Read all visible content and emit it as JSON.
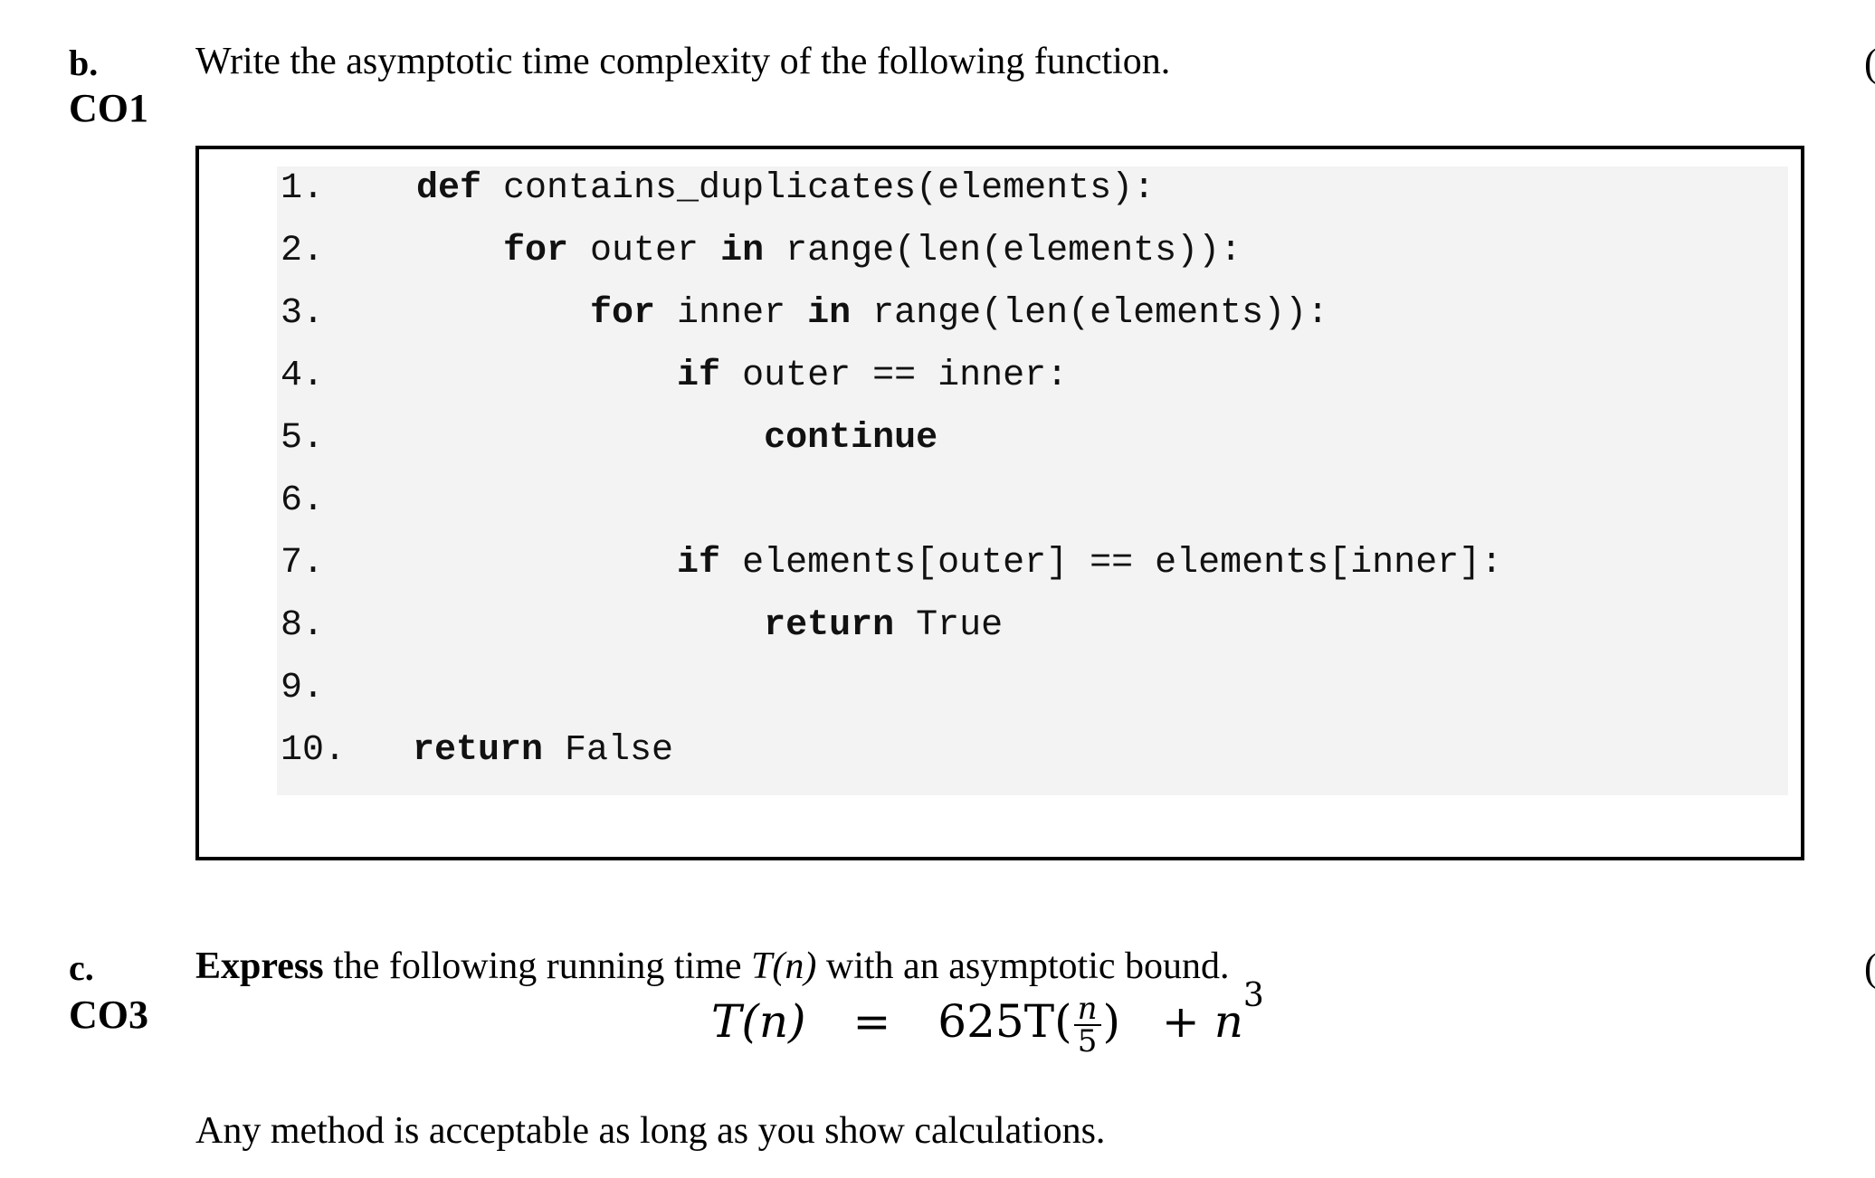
{
  "question_b": {
    "letter": "b.",
    "co": "CO1",
    "prompt": "Write the asymptotic time complexity of the following function.",
    "margin_mark": "("
  },
  "code": {
    "lines": [
      {
        "num": "1.",
        "indent": "",
        "kw1": "def",
        "rest": " contains_duplicates(elements):"
      },
      {
        "num": "2.",
        "indent": "    ",
        "kw1": "for",
        "mid": " outer ",
        "kw2": "in",
        "rest": " range(len(elements)):"
      },
      {
        "num": "3.",
        "indent": "        ",
        "kw1": "for",
        "mid": " inner ",
        "kw2": "in",
        "rest": " range(len(elements)):"
      },
      {
        "num": "4.",
        "indent": "            ",
        "kw1": "if",
        "rest": " outer == inner:"
      },
      {
        "num": "5.",
        "indent": "                ",
        "kw1": "continue",
        "rest": ""
      },
      {
        "num": "6.",
        "indent": "",
        "kw1": "",
        "rest": ""
      },
      {
        "num": "7.",
        "indent": "            ",
        "kw1": "if",
        "rest": " elements[outer] == elements[inner]:"
      },
      {
        "num": "8.",
        "indent": "                ",
        "kw1": "return",
        "rest": " True"
      },
      {
        "num": "9.",
        "indent": "",
        "kw1": "",
        "rest": ""
      },
      {
        "num": "10.",
        "indent": "",
        "kw1": "return",
        "rest": " False"
      }
    ]
  },
  "question_c": {
    "letter": "c.",
    "co": "CO3",
    "prompt_bold": "Express",
    "prompt_rest_1": " the following running time ",
    "prompt_math": "T(n)",
    "prompt_rest_2": " with an asymptotic bound.",
    "margin_mark": "(",
    "equation": {
      "lhs": "T(n)",
      "equals": "=",
      "coef": "625T(",
      "frac_num": "n",
      "frac_den": "5",
      "close": ")",
      "plus": "+ n",
      "exponent": "3"
    },
    "note": "Any method is acceptable as long as you show calculations."
  }
}
